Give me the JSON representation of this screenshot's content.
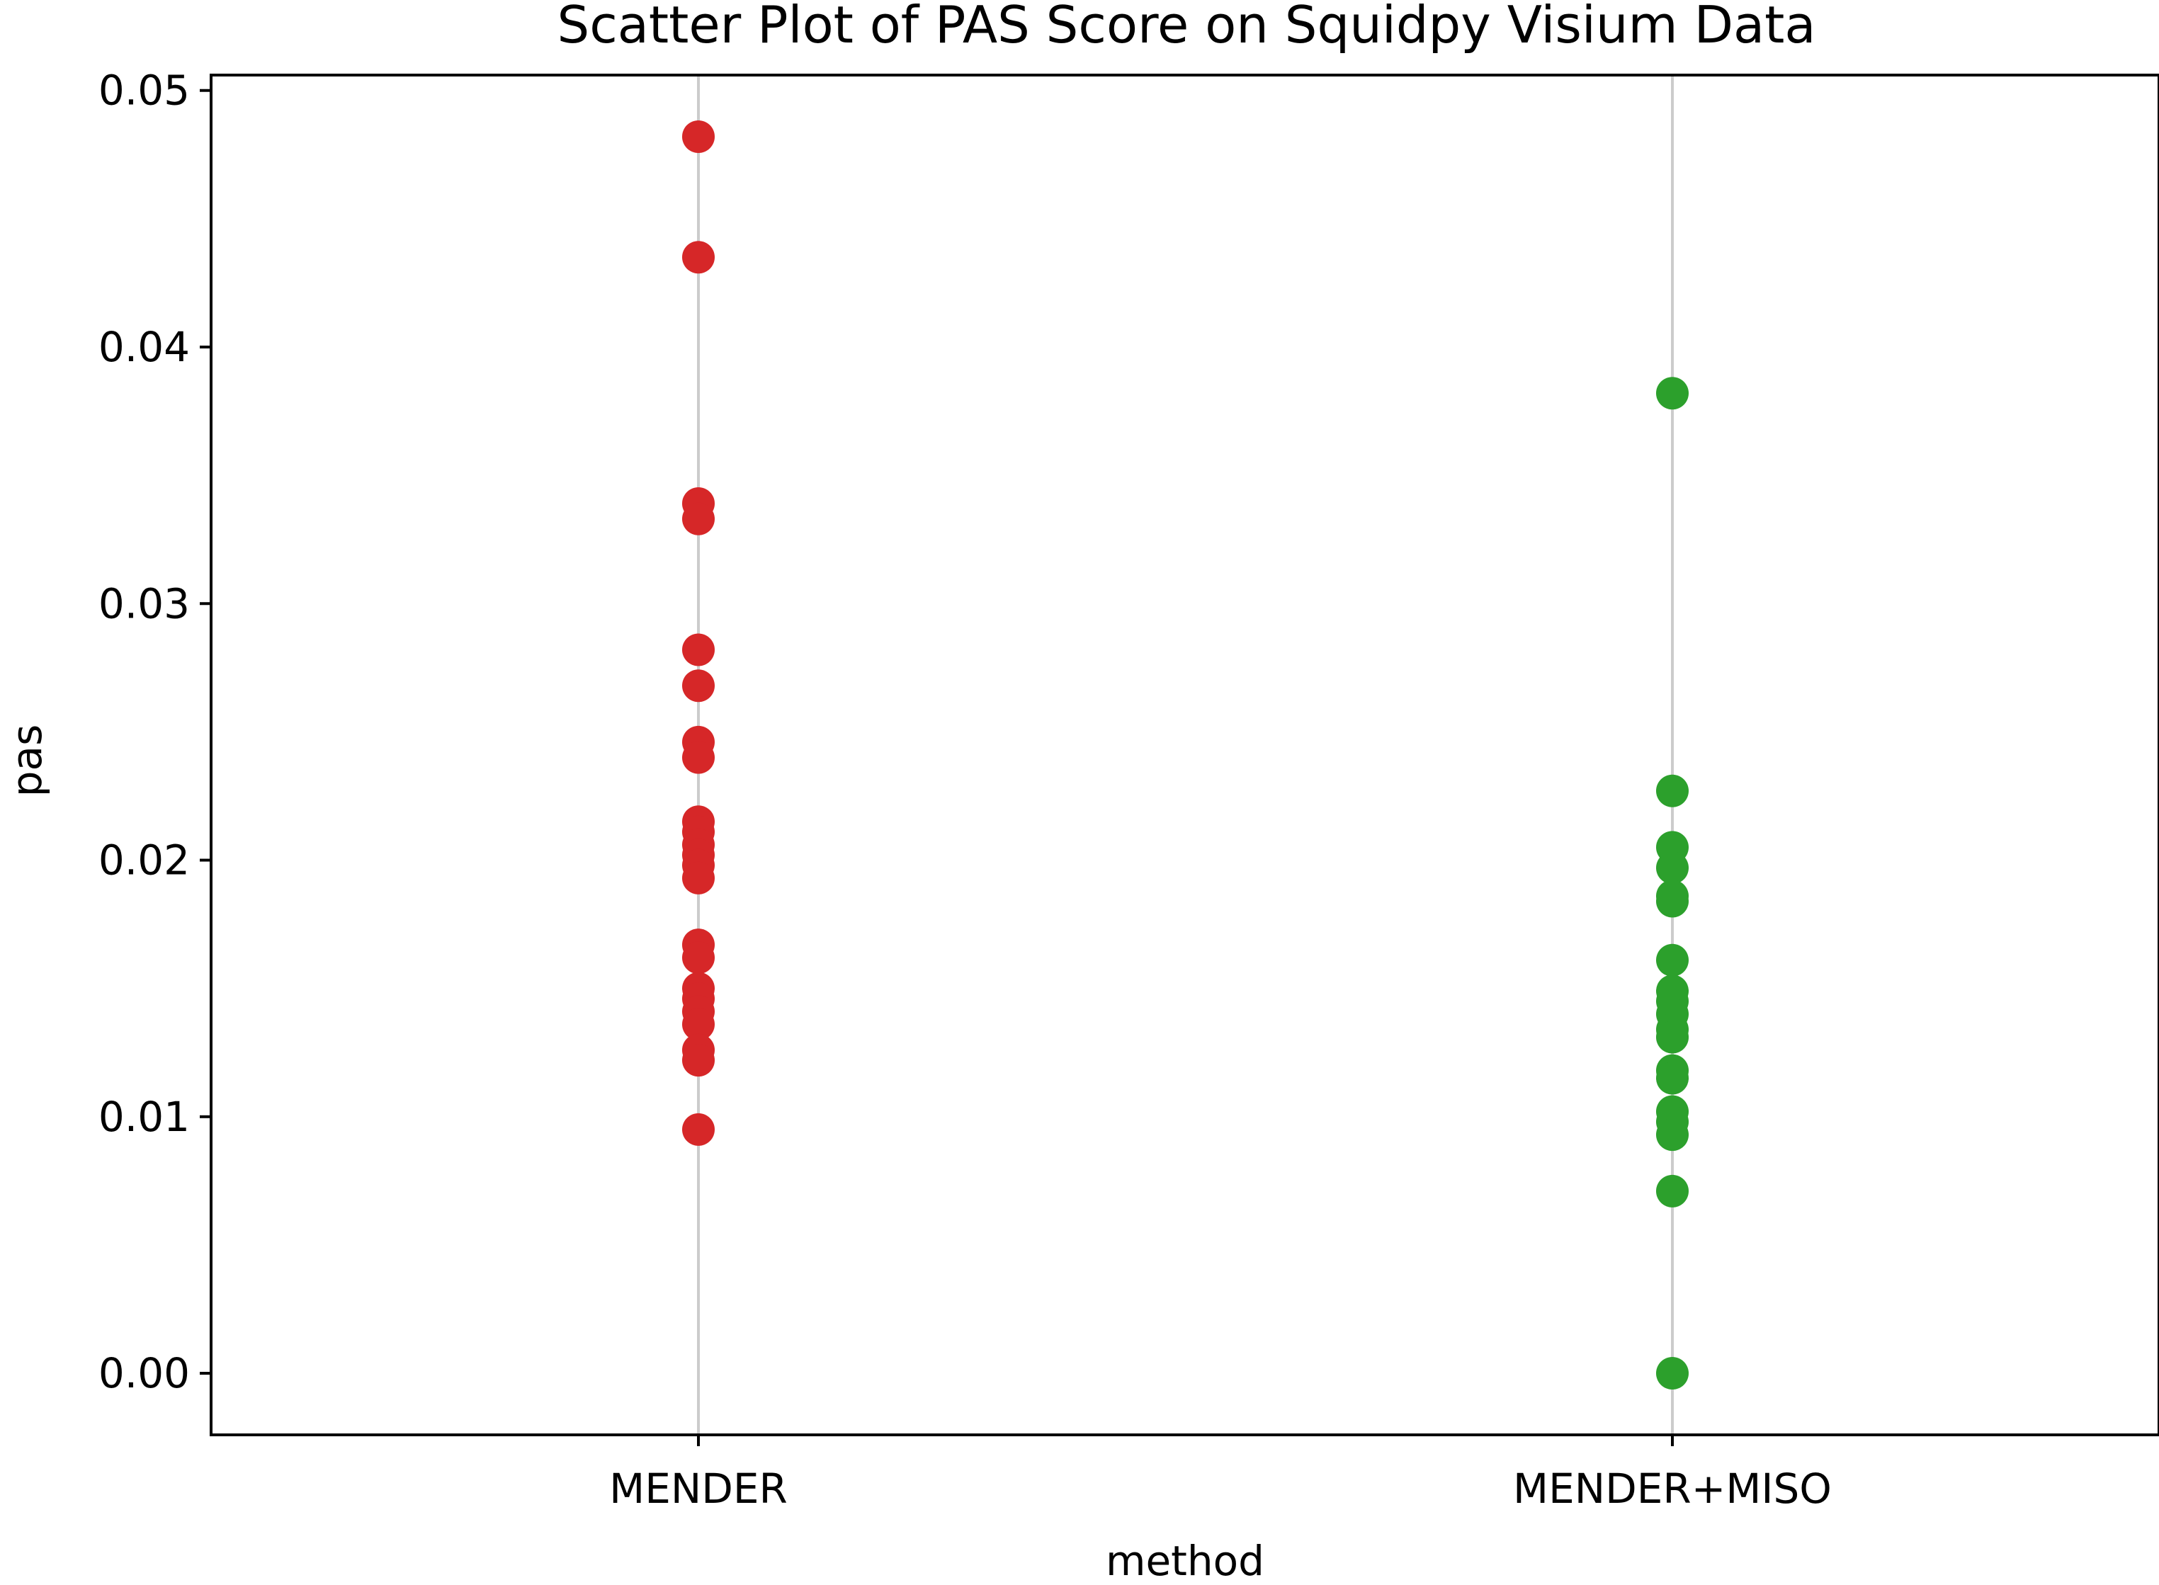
{
  "chart_data": {
    "type": "scatter",
    "title": "Scatter Plot of PAS Score on Squidpy Visium Data",
    "xlabel": "method",
    "ylabel": "pas",
    "categories": [
      "MENDER",
      "MENDER+MISO"
    ],
    "ylim": [
      -0.0024,
      0.0506
    ],
    "yticks": [
      0.0,
      0.01,
      0.02,
      0.03,
      0.04,
      0.05
    ],
    "ytick_labels": [
      "0.00",
      "0.01",
      "0.02",
      "0.03",
      "0.04",
      "0.05"
    ],
    "grid": "vertical lines at categories",
    "series": [
      {
        "category": "MENDER",
        "color": "#d62728",
        "values": [
          0.0482,
          0.0435,
          0.0339,
          0.0333,
          0.0282,
          0.0268,
          0.0246,
          0.024,
          0.0215,
          0.0211,
          0.0206,
          0.0202,
          0.0198,
          0.0193,
          0.0167,
          0.0162,
          0.015,
          0.0146,
          0.0141,
          0.0136,
          0.0126,
          0.0122,
          0.0095
        ]
      },
      {
        "category": "MENDER+MISO",
        "color": "#2ca02c",
        "values": [
          0.0382,
          0.0227,
          0.0205,
          0.0197,
          0.0186,
          0.0184,
          0.0161,
          0.0149,
          0.0145,
          0.014,
          0.0134,
          0.0131,
          0.0118,
          0.0115,
          0.0102,
          0.0098,
          0.0093,
          0.0071,
          0.0
        ]
      }
    ]
  }
}
